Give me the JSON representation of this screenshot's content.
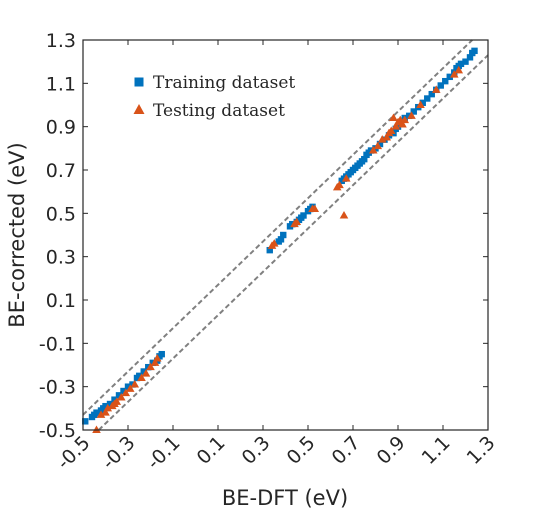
{
  "chart_data": {
    "type": "scatter",
    "xlabel": "BE-DFT (eV)",
    "ylabel": "BE-corrected (eV)",
    "xlim": [
      -0.5,
      1.3
    ],
    "ylim": [
      -0.5,
      1.3
    ],
    "xticks": [
      "-0.5",
      "-0.3",
      "-0.1",
      "0.1",
      "0.3",
      "0.5",
      "0.7",
      "0.9",
      "1.1",
      "1.3"
    ],
    "yticks": [
      "-0.5",
      "-0.3",
      "-0.1",
      "0.1",
      "0.3",
      "0.5",
      "0.7",
      "0.9",
      "1.1",
      "1.3"
    ],
    "tick_values": [
      -0.5,
      -0.3,
      -0.1,
      0.1,
      0.3,
      0.5,
      0.7,
      0.9,
      1.1,
      1.3
    ],
    "legend_position": "top-left",
    "reference_lines": [
      {
        "style": "dashed",
        "color": "#808080",
        "points": [
          [
            -0.5,
            -0.43
          ],
          [
            1.23,
            1.3
          ]
        ]
      },
      {
        "style": "dashed",
        "color": "#808080",
        "points": [
          [
            -0.43,
            -0.5
          ],
          [
            1.3,
            1.23
          ]
        ]
      }
    ],
    "series": [
      {
        "name": "Training dataset",
        "marker": "square",
        "color": "#0072BD",
        "points": [
          [
            -0.49,
            -0.46
          ],
          [
            -0.46,
            -0.44
          ],
          [
            -0.45,
            -0.43
          ],
          [
            -0.44,
            -0.42
          ],
          [
            -0.43,
            -0.42
          ],
          [
            -0.42,
            -0.41
          ],
          [
            -0.41,
            -0.4
          ],
          [
            -0.4,
            -0.39
          ],
          [
            -0.38,
            -0.38
          ],
          [
            -0.36,
            -0.36
          ],
          [
            -0.34,
            -0.34
          ],
          [
            -0.32,
            -0.32
          ],
          [
            -0.3,
            -0.3
          ],
          [
            -0.28,
            -0.29
          ],
          [
            -0.26,
            -0.26
          ],
          [
            -0.25,
            -0.25
          ],
          [
            -0.23,
            -0.23
          ],
          [
            -0.21,
            -0.21
          ],
          [
            -0.19,
            -0.19
          ],
          [
            -0.17,
            -0.18
          ],
          [
            -0.16,
            -0.16
          ],
          [
            -0.15,
            -0.15
          ],
          [
            0.33,
            0.33
          ],
          [
            0.37,
            0.37
          ],
          [
            0.38,
            0.38
          ],
          [
            0.39,
            0.4
          ],
          [
            0.42,
            0.44
          ],
          [
            0.43,
            0.45
          ],
          [
            0.45,
            0.46
          ],
          [
            0.46,
            0.47
          ],
          [
            0.47,
            0.48
          ],
          [
            0.48,
            0.49
          ],
          [
            0.5,
            0.51
          ],
          [
            0.51,
            0.52
          ],
          [
            0.52,
            0.53
          ],
          [
            0.65,
            0.65
          ],
          [
            0.66,
            0.66
          ],
          [
            0.67,
            0.67
          ],
          [
            0.68,
            0.68
          ],
          [
            0.69,
            0.69
          ],
          [
            0.7,
            0.7
          ],
          [
            0.71,
            0.71
          ],
          [
            0.72,
            0.72
          ],
          [
            0.73,
            0.73
          ],
          [
            0.74,
            0.74
          ],
          [
            0.75,
            0.75
          ],
          [
            0.76,
            0.77
          ],
          [
            0.77,
            0.78
          ],
          [
            0.78,
            0.79
          ],
          [
            0.8,
            0.8
          ],
          [
            0.82,
            0.82
          ],
          [
            0.84,
            0.84
          ],
          [
            0.86,
            0.86
          ],
          [
            0.88,
            0.87
          ],
          [
            0.89,
            0.89
          ],
          [
            0.9,
            0.9
          ],
          [
            0.91,
            0.92
          ],
          [
            0.93,
            0.94
          ],
          [
            0.95,
            0.95
          ],
          [
            0.97,
            0.97
          ],
          [
            0.99,
            0.99
          ],
          [
            1.01,
            1.01
          ],
          [
            1.03,
            1.03
          ],
          [
            1.05,
            1.05
          ],
          [
            1.07,
            1.07
          ],
          [
            1.09,
            1.09
          ],
          [
            1.11,
            1.11
          ],
          [
            1.13,
            1.13
          ],
          [
            1.15,
            1.15
          ],
          [
            1.16,
            1.17
          ],
          [
            1.17,
            1.18
          ],
          [
            1.18,
            1.19
          ],
          [
            1.2,
            1.2
          ],
          [
            1.22,
            1.22
          ],
          [
            1.23,
            1.24
          ],
          [
            1.24,
            1.25
          ]
        ]
      },
      {
        "name": "Testing dataset",
        "marker": "triangle",
        "color": "#D95319",
        "points": [
          [
            -0.44,
            -0.5
          ],
          [
            -0.42,
            -0.43
          ],
          [
            -0.4,
            -0.42
          ],
          [
            -0.39,
            -0.4
          ],
          [
            -0.37,
            -0.39
          ],
          [
            -0.36,
            -0.38
          ],
          [
            -0.35,
            -0.37
          ],
          [
            -0.33,
            -0.35
          ],
          [
            -0.31,
            -0.33
          ],
          [
            -0.29,
            -0.31
          ],
          [
            -0.27,
            -0.29
          ],
          [
            -0.24,
            -0.26
          ],
          [
            -0.22,
            -0.24
          ],
          [
            -0.2,
            -0.21
          ],
          [
            -0.18,
            -0.19
          ],
          [
            -0.17,
            -0.17
          ],
          [
            0.34,
            0.35
          ],
          [
            0.35,
            0.36
          ],
          [
            0.44,
            0.45
          ],
          [
            0.45,
            0.46
          ],
          [
            0.52,
            0.52
          ],
          [
            0.53,
            0.52
          ],
          [
            0.63,
            0.62
          ],
          [
            0.64,
            0.63
          ],
          [
            0.66,
            0.49
          ],
          [
            0.67,
            0.66
          ],
          [
            0.79,
            0.79
          ],
          [
            0.81,
            0.81
          ],
          [
            0.83,
            0.84
          ],
          [
            0.85,
            0.85
          ],
          [
            0.86,
            0.87
          ],
          [
            0.87,
            0.88
          ],
          [
            0.88,
            0.94
          ],
          [
            0.89,
            0.9
          ],
          [
            0.9,
            0.92
          ],
          [
            0.91,
            0.93
          ],
          [
            0.92,
            0.91
          ],
          [
            0.93,
            0.93
          ],
          [
            0.96,
            0.95
          ],
          [
            1.0,
            1.0
          ],
          [
            1.07,
            1.07
          ],
          [
            1.15,
            1.14
          ],
          [
            1.17,
            1.16
          ]
        ]
      }
    ]
  }
}
